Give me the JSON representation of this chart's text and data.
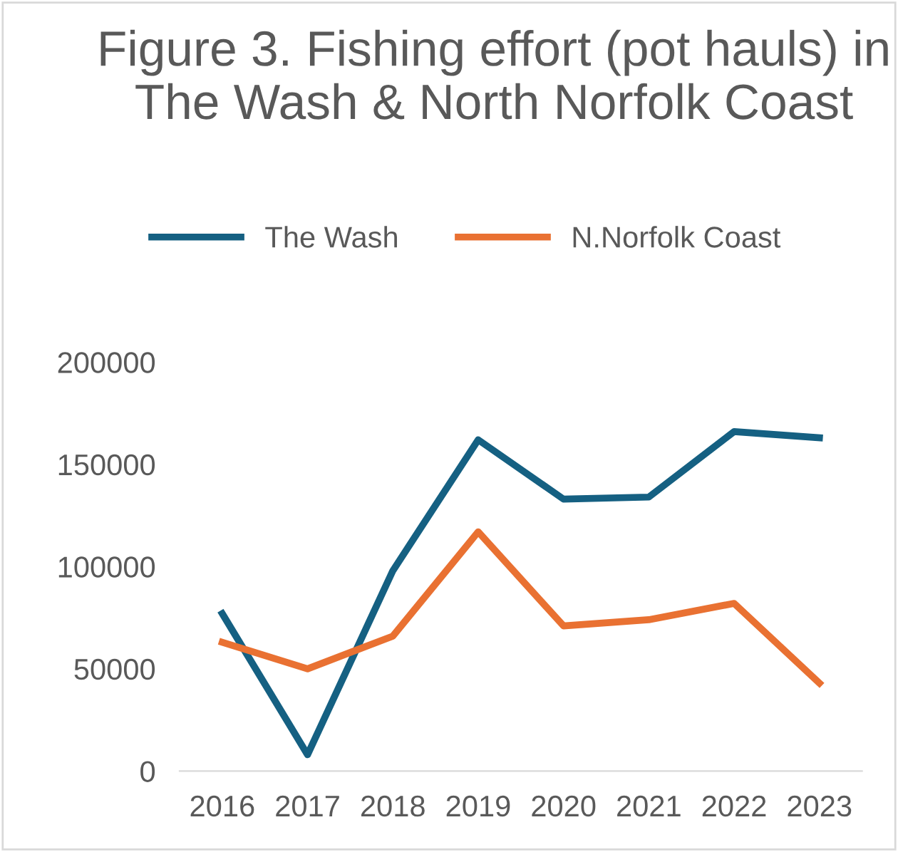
{
  "chart_data": {
    "type": "line",
    "title": "Figure 3. Fishing effort (pot hauls) in The Wash & North Norfolk Coast",
    "categories": [
      "2016",
      "2017",
      "2018",
      "2019",
      "2020",
      "2021",
      "2022",
      "2023"
    ],
    "series": [
      {
        "name": "The Wash",
        "color": "#156082",
        "values": [
          77000,
          8000,
          98000,
          162000,
          133000,
          134000,
          166000,
          163000
        ]
      },
      {
        "name": "N.Norfolk Coast",
        "color": "#e97132",
        "values": [
          63000,
          50000,
          66000,
          117000,
          71000,
          74000,
          82000,
          43000
        ]
      }
    ],
    "ylim": [
      0,
      200000
    ],
    "yticks": [
      0,
      50000,
      100000,
      150000,
      200000
    ],
    "grid": false,
    "legend": "top",
    "marker": "none",
    "line_style": "solid"
  }
}
